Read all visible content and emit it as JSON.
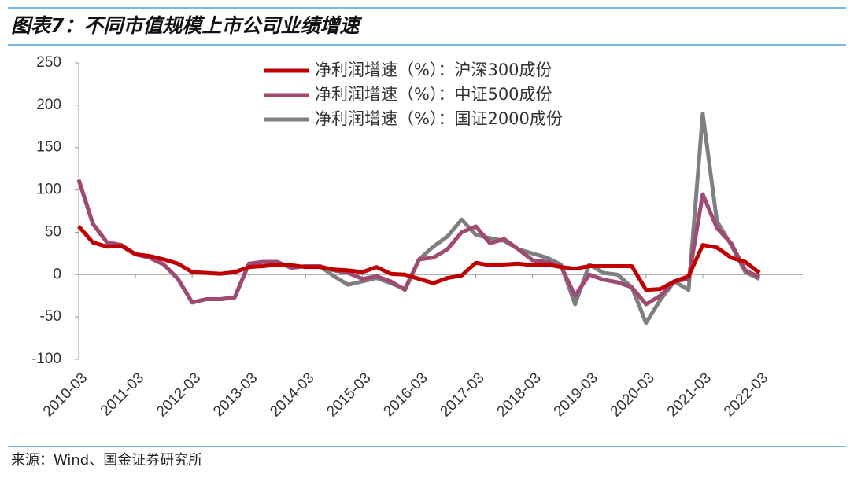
{
  "chart_data": {
    "type": "line",
    "title": "图表7：不同市值规模上市公司业绩增速",
    "source": "来源：Wind、国金证券研究所",
    "categories": [
      "2010-03",
      null,
      null,
      null,
      "2011-03",
      null,
      null,
      null,
      "2012-03",
      null,
      null,
      null,
      "2013-03",
      null,
      null,
      null,
      "2014-03",
      null,
      null,
      null,
      "2015-03",
      null,
      null,
      null,
      "2016-03",
      null,
      null,
      null,
      "2017-03",
      null,
      null,
      null,
      "2018-03",
      null,
      null,
      null,
      "2019-03",
      null,
      null,
      null,
      "2020-03",
      null,
      null,
      null,
      "2021-03",
      null,
      null,
      null,
      "2022-03"
    ],
    "series": [
      {
        "name": "净利润增速（%）：国证2000成份",
        "color": "#7f7f7f",
        "values": [
          112,
          60,
          38,
          35,
          24,
          20,
          12,
          -5,
          -33,
          -29,
          -29,
          -27,
          13,
          15,
          15,
          8,
          10,
          10,
          -2,
          -12,
          -8,
          -4,
          -10,
          -17,
          18,
          33,
          45,
          65,
          47,
          43,
          40,
          30,
          25,
          20,
          12,
          -35,
          12,
          2,
          0,
          -15,
          -57,
          -30,
          -8,
          -18,
          190,
          63,
          35,
          3,
          -5
        ]
      },
      {
        "name": "净利润增速（%）：中证500成份",
        "color": "#9e4a73",
        "values": [
          112,
          60,
          38,
          35,
          24,
          20,
          12,
          -5,
          -33,
          -29,
          -29,
          -27,
          13,
          15,
          15,
          8,
          10,
          10,
          5,
          2,
          -5,
          -2,
          -8,
          -18,
          18,
          20,
          30,
          50,
          57,
          37,
          42,
          30,
          17,
          15,
          10,
          -25,
          0,
          -6,
          -9,
          -15,
          -35,
          -25,
          -8,
          -5,
          95,
          55,
          37,
          5,
          -3
        ]
      },
      {
        "name": "净利润增速（%）：沪深300成份",
        "color": "#c00000",
        "values": [
          57,
          38,
          33,
          34,
          24,
          22,
          18,
          13,
          3,
          2,
          1,
          3,
          9,
          10,
          12,
          11,
          9,
          9,
          6,
          5,
          3,
          9,
          1,
          0,
          -5,
          -10,
          -4,
          -1,
          14,
          11,
          12,
          13,
          11,
          12,
          9,
          7,
          10,
          10,
          10,
          10,
          -18,
          -17,
          -8,
          -2,
          35,
          32,
          20,
          15,
          2
        ]
      }
    ],
    "ylim": [
      -100,
      250
    ],
    "yticks": [
      -100,
      -50,
      0,
      50,
      100,
      150,
      200,
      250
    ]
  }
}
